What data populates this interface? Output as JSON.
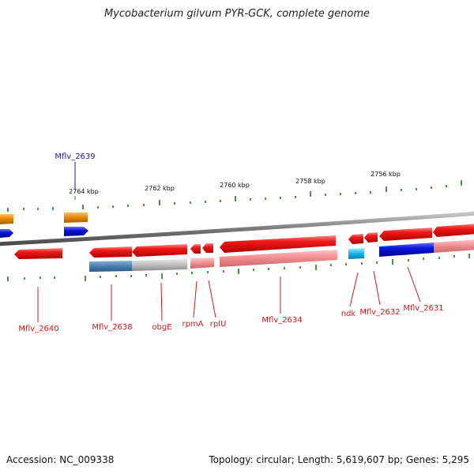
{
  "title": "Mycobacterium gilvum PYR-GCK, complete genome",
  "accession": "Accession: NC_009338",
  "topology": "Topology: circular; Length: 5,619,607 bp; Genes: 5,295",
  "scale_labels": [
    "2764 kbp",
    "2762 kbp",
    "2760 kbp",
    "2758 kbp",
    "2756 kbp"
  ],
  "colors": {
    "gene_red": "#e8141c",
    "gene_red_light": "#f08a8e",
    "gene_blue": "#0a14d8",
    "gene_cyan": "#19b6e6",
    "gene_orange": "#e88a00",
    "steel_blue": "#4a7fb0",
    "grey_band": "#bdbdbd",
    "backbone": "#8a8a8a",
    "tick_green": "#1a7a1a",
    "label_red": "#d01818",
    "label_blue": "#1a1aa0"
  },
  "genes_top": [
    "Mflv_2639"
  ],
  "genes_bottom": [
    "Mflv_2640",
    "Mflv_2638",
    "obgE",
    "rpmA",
    "rplU",
    "Mflv_2634",
    "ndk",
    "Mflv_2632",
    "Mflv_2631"
  ]
}
